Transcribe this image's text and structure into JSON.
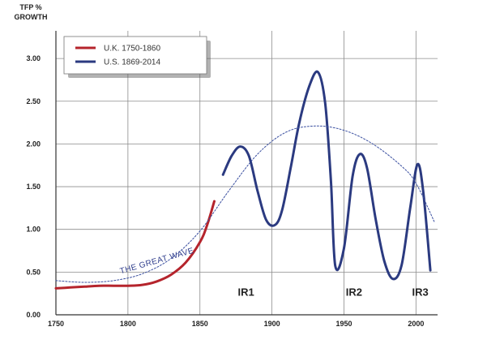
{
  "chart_data": {
    "type": "line",
    "ylabel": [
      "TFP %",
      "GROWTH"
    ],
    "xlim": [
      1750,
      2015
    ],
    "ylim": [
      0,
      3.4
    ],
    "x_ticks": [
      "1750",
      "1800",
      "1850",
      "1900",
      "1950",
      "2000"
    ],
    "y_ticks": [
      "0.00",
      "0.50",
      "1.00",
      "1.50",
      "2.00",
      "2.50",
      "3.00"
    ],
    "grid": true,
    "legend_position": "top-left",
    "series": [
      {
        "name": "U.K. 1750-1860",
        "color": "#b5242c",
        "x": [
          1750,
          1760,
          1770,
          1780,
          1790,
          1800,
          1810,
          1820,
          1830,
          1840,
          1850,
          1855,
          1860
        ],
        "y": [
          0.31,
          0.32,
          0.33,
          0.34,
          0.34,
          0.34,
          0.35,
          0.39,
          0.47,
          0.61,
          0.85,
          1.05,
          1.33
        ]
      },
      {
        "name": "U.S. 1869-2014",
        "color": "#2b3a80",
        "x": [
          1866,
          1872,
          1878,
          1884,
          1890,
          1896,
          1902,
          1907,
          1913,
          1919,
          1926,
          1932,
          1937,
          1941,
          1944,
          1950,
          1956,
          1961,
          1966,
          1972,
          1978,
          1984,
          1990,
          1996,
          2001,
          2005,
          2010
        ],
        "y": [
          1.64,
          1.86,
          1.97,
          1.86,
          1.45,
          1.11,
          1.05,
          1.22,
          1.72,
          2.25,
          2.68,
          2.84,
          2.47,
          1.55,
          0.57,
          0.78,
          1.62,
          1.88,
          1.72,
          1.12,
          0.63,
          0.42,
          0.58,
          1.25,
          1.76,
          1.45,
          0.52
        ]
      },
      {
        "name": "THE GREAT WAVE",
        "color": "#3a4fa0",
        "dashed": true,
        "x": [
          1750,
          1770,
          1790,
          1810,
          1830,
          1850,
          1870,
          1890,
          1910,
          1930,
          1950,
          1970,
          1990,
          2000,
          2013
        ],
        "y": [
          0.4,
          0.38,
          0.4,
          0.48,
          0.66,
          0.98,
          1.45,
          1.88,
          2.14,
          2.21,
          2.16,
          2.0,
          1.74,
          1.54,
          1.08
        ]
      }
    ],
    "annotations": [
      {
        "text": "IR1",
        "x": 1882,
        "y": 0.27
      },
      {
        "text": "IR2",
        "x": 1957,
        "y": 0.27
      },
      {
        "text": "IR3",
        "x": 2003,
        "y": 0.27
      }
    ]
  }
}
